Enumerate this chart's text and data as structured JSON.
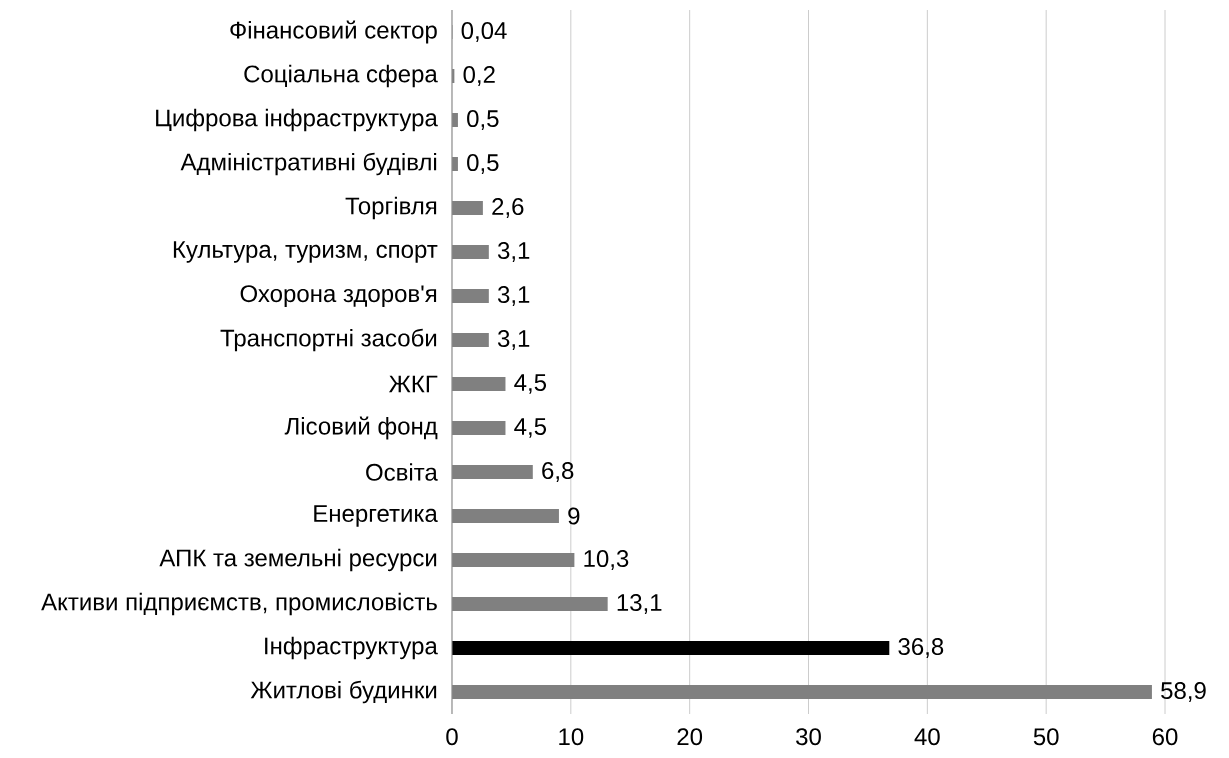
{
  "chart_data": {
    "type": "bar",
    "orientation": "horizontal",
    "categories": [
      "Фінансовий сектор",
      "Соціальна сфера",
      "Цифрова інфраструктура",
      "Адміністративні будівлі",
      "Торгівля",
      "Культура, туризм, спорт",
      "Охорона здоров'я",
      "Транспортні засоби",
      "ЖКГ",
      "Лісовий фонд",
      "Освіта",
      "Енергетика",
      "АПК та земельні ресурси",
      "Активи підприємств, промисловість",
      "Інфраструктура",
      "Житлові будинки"
    ],
    "values": [
      0.04,
      0.2,
      0.5,
      0.5,
      2.6,
      3.1,
      3.1,
      3.1,
      4.5,
      4.5,
      6.8,
      9,
      10.3,
      13.1,
      36.8,
      58.9
    ],
    "value_labels": [
      "0,04",
      "0,2",
      "0,5",
      "0,5",
      "2,6",
      "3,1",
      "3,1",
      "3,1",
      "4,5",
      "4,5",
      "6,8",
      "9",
      "10,3",
      "13,1",
      "36,8",
      "58,9"
    ],
    "colors": [
      "#808080",
      "#808080",
      "#808080",
      "#808080",
      "#808080",
      "#808080",
      "#808080",
      "#808080",
      "#808080",
      "#808080",
      "#808080",
      "#808080",
      "#808080",
      "#808080",
      "#000000",
      "#808080"
    ],
    "xlim": [
      0,
      60
    ],
    "xticks": [
      0,
      10,
      20,
      30,
      40,
      50,
      60
    ],
    "grid": "x"
  }
}
